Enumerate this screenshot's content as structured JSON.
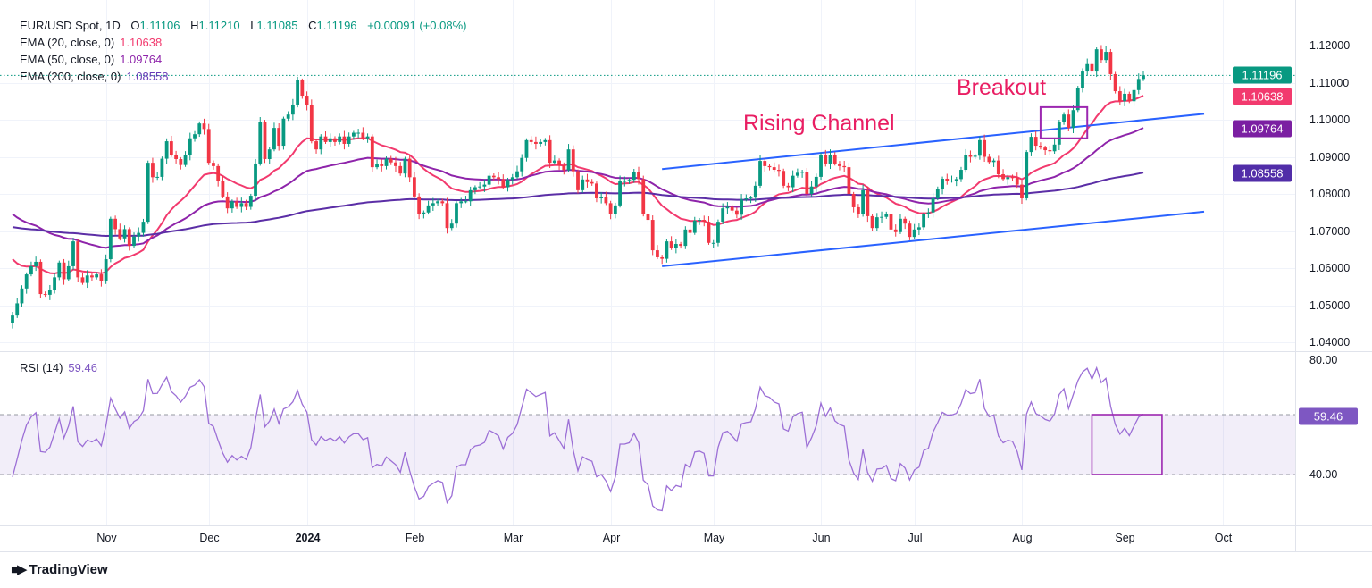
{
  "legend": {
    "symbol": "EUR/USD Spot, 1D",
    "open_label": "O",
    "open": "1.11106",
    "high_label": "H",
    "high": "1.11210",
    "low_label": "L",
    "low": "1.11085",
    "close_label": "C",
    "close": "1.11196",
    "change": "+0.00091 (+0.08%)",
    "ema20_label": "EMA (20, close, 0)",
    "ema20_value": "1.10638",
    "ema50_label": "EMA (50, close, 0)",
    "ema50_value": "1.09764",
    "ema200_label": "EMA (200, close, 0)",
    "ema200_value": "1.08558",
    "rsi_label": "RSI (14)",
    "rsi_value": "59.46"
  },
  "colors": {
    "up": "#089981",
    "down": "#f23645",
    "ema20": "#f23a6e",
    "ema50": "#8e24aa",
    "ema200": "#5b2ea6",
    "channel": "#2962ff",
    "annotation": "#e91e63",
    "rsi": "#9c6fd6"
  },
  "chart_data": {
    "type": "candlestick",
    "title": "EUR/USD Spot, 1D",
    "first_date": "2023-10-04",
    "last_date": "2024-09-06",
    "closes": [
      1.0472,
      1.0505,
      1.0545,
      1.0583,
      1.0605,
      1.0617,
      1.053,
      1.0528,
      1.054,
      1.0575,
      1.0615,
      1.057,
      1.0605,
      1.0672,
      1.0575,
      1.056,
      1.058,
      1.0575,
      1.0583,
      1.0565,
      1.0624,
      1.0733,
      1.0705,
      1.068,
      1.0705,
      1.066,
      1.0685,
      1.0695,
      1.0725,
      1.0884,
      1.0845,
      1.0846,
      1.0895,
      1.0942,
      1.0905,
      1.0894,
      1.0878,
      1.0905,
      1.095,
      1.0961,
      1.099,
      1.0975,
      1.0884,
      1.0875,
      1.0834,
      1.0793,
      1.0761,
      1.078,
      1.0765,
      1.0775,
      1.0765,
      1.0795,
      1.0882,
      1.0993,
      1.0894,
      1.092,
      1.0978,
      1.093,
      1.1003,
      1.1014,
      1.1041,
      1.1106,
      1.1065,
      1.104,
      1.0942,
      1.092,
      1.0955,
      1.094,
      1.095,
      1.094,
      1.0955,
      1.0935,
      1.0955,
      1.0965,
      1.0965,
      1.095,
      1.0955,
      1.0872,
      1.088,
      1.0875,
      1.0895,
      1.0885,
      1.0875,
      1.0855,
      1.0895,
      1.0845,
      1.0793,
      1.0745,
      1.075,
      1.0769,
      1.0775,
      1.078,
      1.0775,
      1.0708,
      1.072,
      1.0775,
      1.078,
      1.078,
      1.081,
      1.0818,
      1.082,
      1.0825,
      1.0849,
      1.0845,
      1.084,
      1.0818,
      1.0838,
      1.0845,
      1.0861,
      1.0897,
      1.0945,
      1.094,
      1.0935,
      1.094,
      1.0945,
      1.0884,
      1.089,
      1.0877,
      1.0864,
      1.092,
      1.0861,
      1.081,
      1.0839,
      1.0832,
      1.0828,
      1.0788,
      1.0792,
      1.0775,
      1.0745,
      1.0769,
      1.0835,
      1.0835,
      1.0838,
      1.0858,
      1.084,
      1.0745,
      1.073,
      1.0648,
      1.0629,
      1.0625,
      1.0672,
      1.0655,
      1.0665,
      1.066,
      1.0704,
      1.0695,
      1.0728,
      1.073,
      1.0725,
      1.0668,
      1.0668,
      1.0725,
      1.0761,
      1.0765,
      1.0755,
      1.0744,
      1.0785,
      1.0788,
      1.079,
      1.0822,
      1.0889,
      1.0875,
      1.0872,
      1.0865,
      1.0862,
      1.0822,
      1.0818,
      1.0849,
      1.0857,
      1.086,
      1.08,
      1.082,
      1.0846,
      1.0906,
      1.0882,
      1.0906,
      1.0882,
      1.0875,
      1.0872,
      1.08,
      1.0764,
      1.0745,
      1.081,
      1.074,
      1.0708,
      1.0737,
      1.0738,
      1.0745,
      1.0704,
      1.0697,
      1.0733,
      1.072,
      1.0684,
      1.0704,
      1.071,
      1.0745,
      1.075,
      1.0788,
      1.0812,
      1.0841,
      1.0836,
      1.0836,
      1.084,
      1.0865,
      1.0906,
      1.09,
      1.0903,
      1.0945,
      1.09,
      1.0886,
      1.089,
      1.0853,
      1.084,
      1.0845,
      1.0843,
      1.0825,
      1.0788,
      1.0913,
      1.0954,
      1.093,
      1.0925,
      1.0918,
      1.0915,
      1.0933,
      1.0993,
      1.1014,
      1.0978,
      1.1026,
      1.1086,
      1.113,
      1.115,
      1.113,
      1.119,
      1.1161,
      1.1183,
      1.1123,
      1.1077,
      1.105,
      1.107,
      1.105,
      1.108,
      1.111,
      1.11196
    ],
    "ema_series": [
      {
        "name": "EMA (20, close, 0)",
        "period": 20,
        "start_value": 1.064,
        "last": 1.10638
      },
      {
        "name": "EMA (50, close, 0)",
        "period": 50,
        "start_value": 1.0757,
        "last": 1.09764
      },
      {
        "name": "EMA (200, close, 0)",
        "period": 200,
        "start_value": 1.0713,
        "last": 1.08558
      }
    ],
    "y_ticks": [
      "1.12000",
      "1.11000",
      "1.10000",
      "1.09000",
      "1.08000",
      "1.07000",
      "1.06000",
      "1.05000",
      "1.04000"
    ],
    "ylim": [
      1.0385,
      1.1235
    ],
    "x_ticks": [
      {
        "label": "Nov",
        "date": "2023-11-01"
      },
      {
        "label": "Dec",
        "date": "2023-12-01"
      },
      {
        "label": "2024",
        "date": "2024-01-01",
        "bold": true
      },
      {
        "label": "Feb",
        "date": "2024-02-01"
      },
      {
        "label": "Mar",
        "date": "2024-03-01"
      },
      {
        "label": "Apr",
        "date": "2024-04-01"
      },
      {
        "label": "May",
        "date": "2024-05-01"
      },
      {
        "label": "Jun",
        "date": "2024-06-03"
      },
      {
        "label": "Jul",
        "date": "2024-07-01"
      },
      {
        "label": "Aug",
        "date": "2024-08-01"
      },
      {
        "label": "Sep",
        "date": "2024-09-02"
      },
      {
        "label": "Oct",
        "date": "2024-10-01"
      }
    ],
    "channel": {
      "upper": [
        {
          "date": "2024-04-16",
          "price": 1.0867
        },
        {
          "date": "2024-09-25",
          "price": 1.1016
        }
      ],
      "lower": [
        {
          "date": "2024-04-16",
          "price": 1.0605
        },
        {
          "date": "2024-09-25",
          "price": 1.0752
        }
      ]
    },
    "breakout_box": {
      "from": "2024-08-07",
      "to": "2024-08-21",
      "top": 1.1034,
      "bottom": 1.095
    },
    "annotations": {
      "channel_text": "Rising Channel",
      "breakout_text": "Breakout"
    },
    "last_price": 1.11196,
    "price_badges": [
      {
        "label": "1.11196",
        "value": 1.11196,
        "color": "#089981"
      },
      {
        "label": "1.10638",
        "value": 1.10638,
        "color": "#f23a6e"
      },
      {
        "label": "1.09764",
        "value": 1.09764,
        "color": "#7b1fa2"
      },
      {
        "label": "1.08558",
        "value": 1.08558,
        "color": "#512da8"
      }
    ],
    "rsi": {
      "period": 14,
      "levels": [
        60,
        40
      ],
      "y_ticks": [
        "80.00",
        "40.00"
      ],
      "last": 59.46,
      "last_label": "59.46",
      "highlight_box": {
        "from": "2024-08-22",
        "to": "2024-09-12",
        "top": 60,
        "bottom": 40
      }
    }
  },
  "footer": {
    "brand": "TradingView",
    "brand_mark": "TV"
  }
}
